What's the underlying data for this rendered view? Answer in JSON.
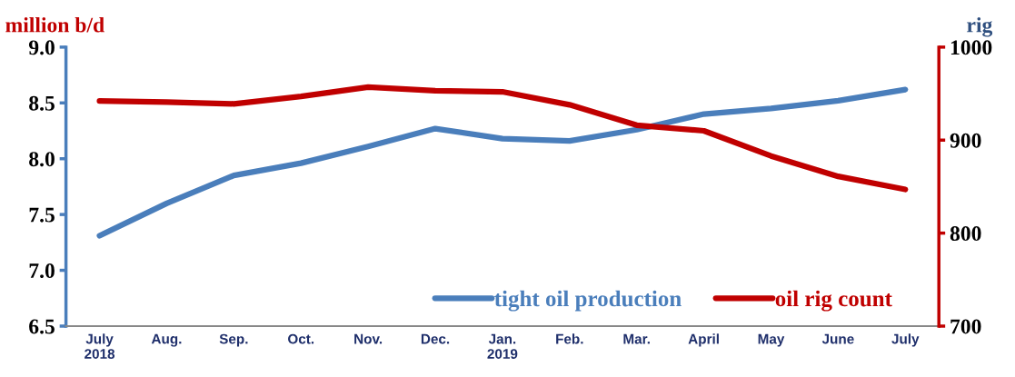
{
  "chart_data": {
    "type": "line",
    "ylabel": "million b/d",
    "y2label": "rig",
    "categories": [
      "July\n2018",
      "Aug.",
      "Sep.",
      "Oct.",
      "Nov.",
      "Dec.",
      "Jan.\n2019",
      "Feb.",
      "Mar.",
      "April",
      "May",
      "June",
      "July"
    ],
    "series": [
      {
        "name": "tight oil production",
        "color": "#4a7ebb",
        "values": [
          7.31,
          7.6,
          7.85,
          7.96,
          8.11,
          8.27,
          8.18,
          8.16,
          8.26,
          8.4,
          8.45,
          8.52,
          8.62
        ]
      },
      {
        "name": "oil rig count",
        "color": "#c00000",
        "axis": "y2",
        "values": [
          942,
          941,
          939,
          947,
          957,
          953,
          952,
          938,
          916,
          910,
          883,
          861,
          847
        ]
      }
    ],
    "ylim": [
      6.5,
      9.0
    ],
    "yticks": [
      {
        "value": 6.5,
        "label": "6.5"
      },
      {
        "value": 7.0,
        "label": "7.0"
      },
      {
        "value": 7.5,
        "label": "7.5"
      },
      {
        "value": 8.0,
        "label": "8.0"
      },
      {
        "value": 8.5,
        "label": "8.5"
      },
      {
        "value": 9.0,
        "label": "9.0"
      }
    ],
    "y2lim": [
      700,
      1000
    ],
    "y2ticks": [
      700,
      800,
      900,
      1000
    ],
    "legend": "bottom right",
    "grid": false,
    "marker": "none",
    "line_style": "solid"
  }
}
